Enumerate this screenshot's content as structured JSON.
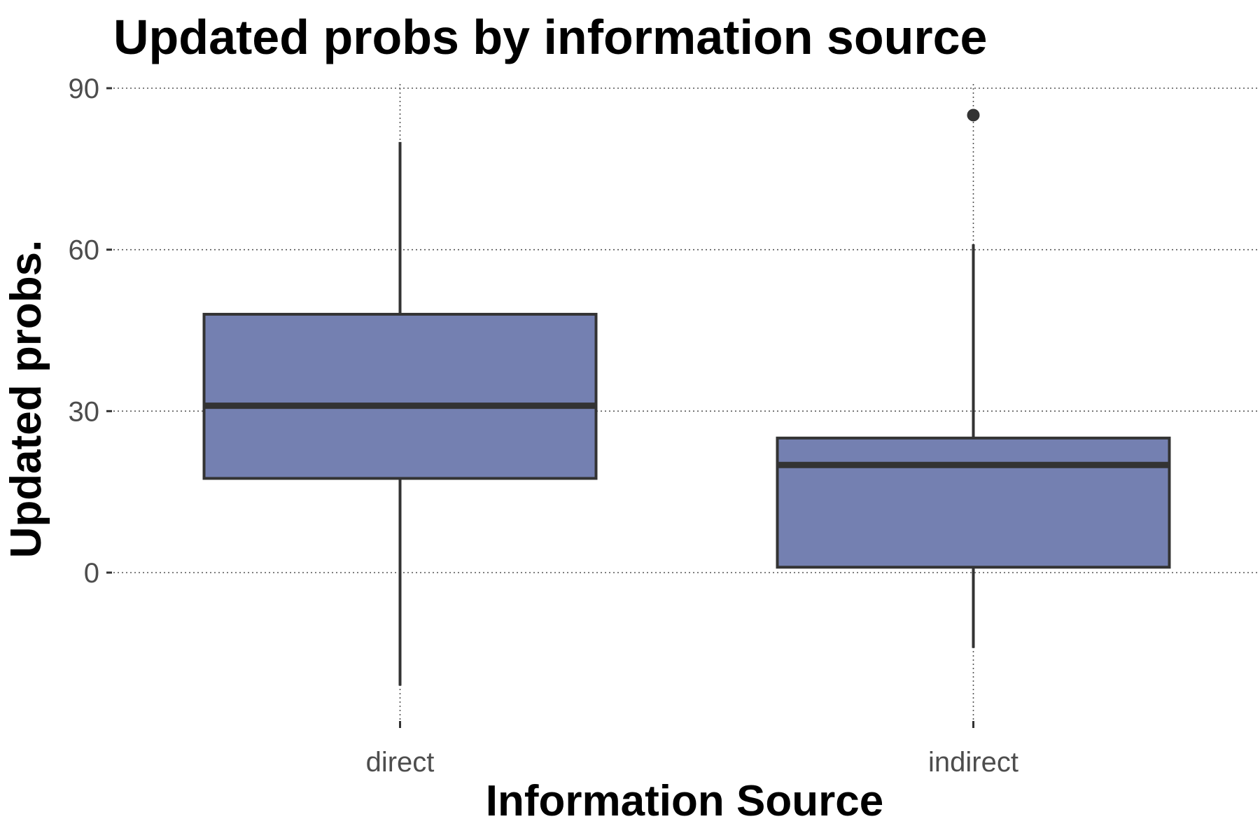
{
  "chart_data": {
    "type": "boxplot",
    "title": "Updated probs by information source",
    "xlabel": "Information Source",
    "ylabel": "Updated probs.",
    "categories": [
      "direct",
      "indirect"
    ],
    "boxes": [
      {
        "category": "direct",
        "whisker_low": -21,
        "q1": 17.5,
        "median": 31,
        "q3": 48,
        "whisker_high": 80,
        "outliers": []
      },
      {
        "category": "indirect",
        "whisker_low": -14,
        "q1": 1,
        "median": 20,
        "q3": 25,
        "whisker_high": 61,
        "outliers": [
          85
        ]
      }
    ],
    "yticks": [
      0,
      30,
      60,
      90
    ],
    "ylim": [
      -27,
      93
    ],
    "grid": true,
    "fill_color": "#7480b1",
    "line_color": "#333333"
  }
}
